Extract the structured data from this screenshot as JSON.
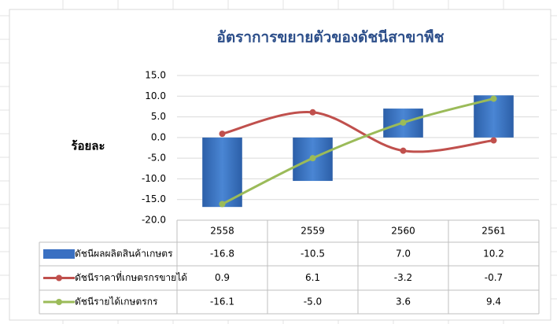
{
  "chart_data": {
    "type": "bar",
    "title": "อัตราการขยายตัวของดัชนีสาขาพืช",
    "y_label": "ร้อยละ",
    "categories": [
      "2558",
      "2559",
      "2560",
      "2561"
    ],
    "series": [
      {
        "name": "ดัชนีผลผลิตสินค้าเกษตร",
        "type": "bar",
        "color": "#3a70c2",
        "values": [
          -16.8,
          -10.5,
          7.0,
          10.2
        ],
        "value_labels": [
          "-16.8",
          "-10.5",
          "7.0",
          "10.2"
        ]
      },
      {
        "name": "ดัชนีราคาที่เกษตรกรขายได้",
        "type": "line",
        "color": "#c0504d",
        "values": [
          0.9,
          6.1,
          -3.2,
          -0.7
        ],
        "value_labels": [
          "0.9",
          "6.1",
          "-3.2",
          "-0.7"
        ]
      },
      {
        "name": "ดัชนีรายได้เกษตรกร",
        "type": "line",
        "color": "#9bbb59",
        "values": [
          -16.1,
          -5.0,
          3.6,
          9.4
        ],
        "value_labels": [
          "-16.1",
          "-5.0",
          "3.6",
          "9.4"
        ]
      }
    ],
    "ylim": [
      -20,
      15
    ],
    "yticks": [
      {
        "value": -20,
        "label": "-20.0"
      },
      {
        "value": -15,
        "label": "-15.0"
      },
      {
        "value": -10,
        "label": "-10.0"
      },
      {
        "value": -5,
        "label": "-5.0"
      },
      {
        "value": 0,
        "label": "0.0"
      },
      {
        "value": 5,
        "label": "5.0"
      },
      {
        "value": 10,
        "label": "10.0"
      },
      {
        "value": 15,
        "label": "15.0"
      }
    ],
    "grid": true
  }
}
